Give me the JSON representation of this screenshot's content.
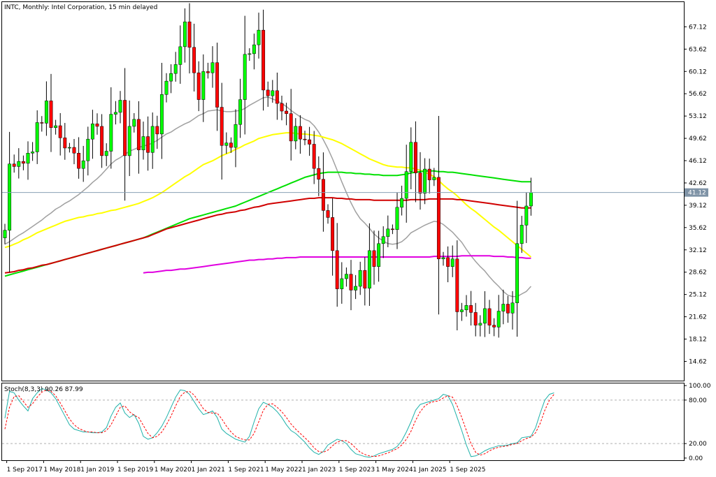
{
  "header": {
    "main_label": "INTC, Monthly:  Intel Corporation, 15 min delayed",
    "stoch_label": "Stoch(8,3,3) 90.26 87.99"
  },
  "colors": {
    "bull": "#00ff00",
    "bear": "#ff0000",
    "outline": "#000000",
    "sma_gray": "#a0a0a0",
    "sma_yellow": "#ffff00",
    "sma_green": "#00e000",
    "sma_red": "#d00000",
    "sma_magenta": "#e000e0",
    "stoch_main": "#20b2aa",
    "stoch_signal": "#ff0000",
    "current_line": "#8aa0b4",
    "price_box": "#7f93a6"
  },
  "chart_data": [
    {
      "type": "candlestick",
      "title": "INTC, Monthly:  Intel Corporation, 15 min delayed",
      "timeframe": "Monthly",
      "x_start": "2017-08",
      "x_end": "2025-10",
      "ylim": [
        11.6,
        71.0
      ],
      "y_ticks": [
        67.12,
        63.62,
        60.12,
        56.62,
        53.12,
        49.62,
        46.12,
        42.62,
        39.12,
        35.62,
        32.12,
        28.62,
        25.12,
        21.62,
        18.12,
        14.62
      ],
      "y_tick_labels": [
        "67.12",
        "63.62",
        "60.12",
        "56.62",
        "53.12",
        "49.62",
        "46.12",
        "42.62",
        "39.12",
        "35.62",
        "32.12",
        "28.62",
        "25.12",
        "21.62",
        "18.12",
        "14.62"
      ],
      "x_tick_labels": [
        "1 Sep 2017",
        "1 May 2018",
        "1 Jan 2019",
        "1 Sep 2019",
        "1 May 2020",
        "1 Jan 2021",
        "1 Sep 2021",
        "1 May 2022",
        "1 Jan 2023",
        "1 Sep 2023",
        "1 May 2024",
        "1 Jan 2025",
        "1 Sep 2025"
      ],
      "current_price": 41.12,
      "current_price_label": "41.12",
      "close_series": [
        35.2,
        45.6,
        45.2,
        46.0,
        45.7,
        47.3,
        47.5,
        52.1,
        52.0,
        55.5,
        51.3,
        51.6,
        49.7,
        48.1,
        48.2,
        47.3,
        44.9,
        46.1,
        49.5,
        51.9,
        51.5,
        46.9,
        47.6,
        53.4,
        53.7,
        55.6,
        46.9,
        51.5,
        52.6,
        47.8,
        49.9,
        47.4,
        51.5,
        50.3,
        56.5,
        58.6,
        59.8,
        61.2,
        64.0,
        67.9,
        63.9,
        59.9,
        55.7,
        60.1,
        59.9,
        61.5,
        54.5,
        48.5,
        48.9,
        48.2,
        51.8,
        55.7,
        62.8,
        62.9,
        64.3,
        66.6,
        57.2,
        56.3,
        57.1,
        55.1,
        53.9,
        53.5,
        49.2,
        51.5,
        49.5,
        49.4,
        48.7,
        44.9,
        43.2,
        38.3,
        37.2,
        32.0,
        26.0,
        27.6,
        28.3,
        25.8,
        26.4,
        28.9,
        26.1,
        32.0,
        29.5,
        33.1,
        34.2,
        35.4,
        35.3,
        38.8,
        40.2,
        44.4,
        49.0,
        44.2,
        41.0,
        44.8,
        43.1,
        43.5,
        30.7,
        30.9,
        29.5,
        30.7,
        22.4,
        22.7,
        23.4,
        22.3,
        20.3,
        20.6,
        22.9,
        20.3,
        20.0,
        22.5,
        23.6,
        22.2,
        23.8,
        33.1,
        36.0,
        39.0,
        41.1
      ],
      "series": [
        {
          "name": "SMA (gray)",
          "start_index": 0,
          "values": [
            33.0,
            33.4,
            33.9,
            34.4,
            34.8,
            35.3,
            35.8,
            36.3,
            36.8,
            37.4,
            37.9,
            38.5,
            38.9,
            39.4,
            39.8,
            40.3,
            40.8,
            41.4,
            42.0,
            42.7,
            43.3,
            44.0,
            44.8,
            45.6,
            46.2,
            46.6,
            47.1,
            47.6,
            47.9,
            48.2,
            48.4,
            48.6,
            48.9,
            49.3,
            49.8,
            50.3,
            50.6,
            51.1,
            51.5,
            51.9,
            52.2,
            52.7,
            53.2,
            53.5,
            53.9,
            54.0,
            54.1,
            53.9,
            53.8,
            53.8,
            53.9,
            54.0,
            54.3,
            54.8,
            55.2,
            55.6,
            56.0,
            56.1,
            55.8,
            55.5,
            55.1,
            54.6,
            54.0,
            53.5,
            53.0,
            52.6,
            52.3,
            51.6,
            50.6,
            49.4,
            48.0,
            46.4,
            44.6,
            42.8,
            41.1,
            39.5,
            38.1,
            37.0,
            36.3,
            35.5,
            34.6,
            34.0,
            33.5,
            33.1,
            33.0,
            33.1,
            33.4,
            34.0,
            34.8,
            35.2,
            35.6,
            36.0,
            36.3,
            36.6,
            36.5,
            36.1,
            35.5,
            34.9,
            34.1,
            33.3,
            32.2,
            31.2,
            30.3,
            29.5,
            28.8,
            27.9,
            27.1,
            26.4,
            25.6,
            25.0,
            24.8,
            24.8,
            25.2,
            25.6,
            26.4
          ]
        },
        {
          "name": "SMA (yellow)",
          "start_index": 0,
          "values": [
            32.5,
            32.7,
            33.0,
            33.3,
            33.7,
            34.0,
            34.4,
            34.8,
            35.1,
            35.4,
            35.7,
            36.0,
            36.3,
            36.6,
            36.8,
            37.0,
            37.2,
            37.3,
            37.5,
            37.6,
            37.8,
            37.9,
            38.1,
            38.3,
            38.4,
            38.6,
            38.8,
            39.0,
            39.2,
            39.4,
            39.7,
            40.0,
            40.3,
            40.7,
            41.1,
            41.6,
            42.1,
            42.6,
            43.1,
            43.6,
            44.0,
            44.5,
            45.0,
            45.5,
            45.8,
            46.1,
            46.5,
            46.9,
            47.2,
            47.5,
            47.9,
            48.2,
            48.6,
            48.9,
            49.2,
            49.6,
            49.8,
            50.0,
            50.2,
            50.3,
            50.4,
            50.5,
            50.5,
            50.4,
            50.3,
            50.3,
            50.2,
            50.1,
            50.0,
            49.8,
            49.6,
            49.4,
            49.1,
            48.8,
            48.4,
            48.0,
            47.6,
            47.2,
            46.8,
            46.4,
            46.1,
            45.8,
            45.5,
            45.3,
            45.2,
            45.1,
            45.1,
            45.0,
            45.0,
            44.8,
            44.6,
            44.3,
            44.0,
            43.6,
            43.0,
            42.3,
            41.7,
            41.2,
            40.6,
            39.9,
            39.2,
            38.6,
            38.1,
            37.5,
            36.9,
            36.3,
            35.7,
            35.2,
            34.6,
            34.0,
            33.4,
            32.8,
            32.2,
            31.6,
            31.0
          ]
        },
        {
          "name": "SMA (green)",
          "start_index": 0,
          "values": [
            28.0,
            28.2,
            28.4,
            28.6,
            28.8,
            29.0,
            29.2,
            29.4,
            29.6,
            29.8,
            30.0,
            30.2,
            30.4,
            30.6,
            30.8,
            31.0,
            31.2,
            31.4,
            31.6,
            31.8,
            32.0,
            32.2,
            32.4,
            32.6,
            32.8,
            33.0,
            33.2,
            33.4,
            33.6,
            33.8,
            34.0,
            34.3,
            34.6,
            34.9,
            35.2,
            35.5,
            35.8,
            36.1,
            36.4,
            36.7,
            37.0,
            37.2,
            37.4,
            37.6,
            37.8,
            38.0,
            38.2,
            38.4,
            38.6,
            38.8,
            39.0,
            39.3,
            39.6,
            39.9,
            40.2,
            40.5,
            40.8,
            41.1,
            41.4,
            41.7,
            42.0,
            42.3,
            42.6,
            42.9,
            43.2,
            43.5,
            43.7,
            43.9,
            44.1,
            44.2,
            44.3,
            44.3,
            44.3,
            44.3,
            44.2,
            44.2,
            44.1,
            44.1,
            44.0,
            44.0,
            43.9,
            43.9,
            43.8,
            43.8,
            43.8,
            43.8,
            43.9,
            44.0,
            44.2,
            44.3,
            44.4,
            44.5,
            44.5,
            44.5,
            44.4,
            44.4,
            44.3,
            44.3,
            44.2,
            44.1,
            44.0,
            43.9,
            43.8,
            43.7,
            43.6,
            43.5,
            43.4,
            43.3,
            43.2,
            43.1,
            43.0,
            42.9,
            42.8,
            42.8,
            42.8
          ]
        },
        {
          "name": "SMA (red)",
          "start_index": 0,
          "values": [
            28.5,
            28.6,
            28.7,
            28.9,
            29.0,
            29.2,
            29.3,
            29.5,
            29.7,
            29.8,
            30.0,
            30.2,
            30.4,
            30.6,
            30.8,
            31.0,
            31.2,
            31.4,
            31.6,
            31.8,
            32.0,
            32.2,
            32.4,
            32.6,
            32.8,
            33.0,
            33.2,
            33.4,
            33.6,
            33.8,
            34.0,
            34.2,
            34.5,
            34.8,
            35.1,
            35.4,
            35.6,
            35.8,
            36.0,
            36.2,
            36.4,
            36.6,
            36.8,
            37.0,
            37.2,
            37.4,
            37.6,
            37.7,
            37.9,
            38.0,
            38.1,
            38.3,
            38.4,
            38.6,
            38.8,
            38.9,
            39.1,
            39.3,
            39.4,
            39.5,
            39.6,
            39.7,
            39.8,
            39.9,
            40.0,
            40.1,
            40.2,
            40.2,
            40.3,
            40.3,
            40.3,
            40.3,
            40.2,
            40.2,
            40.1,
            40.1,
            40.0,
            40.0,
            40.0,
            40.0,
            39.9,
            39.9,
            39.9,
            39.9,
            39.9,
            39.9,
            39.9,
            39.9,
            40.0,
            40.0,
            40.0,
            40.0,
            40.1,
            40.1,
            40.1,
            40.1,
            40.1,
            40.1,
            40.0,
            40.0,
            39.9,
            39.8,
            39.7,
            39.6,
            39.5,
            39.4,
            39.3,
            39.2,
            39.1,
            39.0,
            38.9,
            38.8,
            38.7,
            38.7,
            38.7
          ]
        },
        {
          "name": "SMA (magenta)",
          "start_index": 30,
          "values": [
            28.5,
            28.6,
            28.6,
            28.7,
            28.8,
            28.9,
            28.9,
            29.0,
            29.1,
            29.1,
            29.2,
            29.3,
            29.4,
            29.5,
            29.6,
            29.7,
            29.8,
            29.9,
            30.0,
            30.1,
            30.2,
            30.3,
            30.4,
            30.5,
            30.5,
            30.6,
            30.6,
            30.7,
            30.7,
            30.8,
            30.8,
            30.9,
            30.9,
            30.9,
            31.0,
            31.0,
            31.0,
            31.0,
            31.0,
            31.0,
            31.0,
            31.0,
            31.0,
            31.0,
            31.0,
            31.0,
            31.0,
            31.0,
            31.0,
            31.0,
            31.0,
            31.0,
            31.0,
            31.0,
            31.0,
            31.0,
            31.0,
            31.0,
            31.0,
            31.0,
            31.0,
            31.0,
            31.0,
            31.1,
            31.1,
            31.1,
            31.1,
            31.1,
            31.1,
            31.2,
            31.2,
            31.2,
            31.2,
            31.2,
            31.2,
            31.2,
            31.1,
            31.1,
            31.1,
            31.0,
            31.0,
            30.9,
            30.9,
            30.8,
            30.8
          ]
        }
      ]
    },
    {
      "type": "line",
      "title": "Stoch(8,3,3) 90.26 87.99",
      "ylim": [
        -3,
        103
      ],
      "y_ticks": [
        100,
        80,
        20,
        0
      ],
      "y_tick_labels": [
        "100.00",
        "80.00",
        "20.00",
        "0.00"
      ],
      "levels": [
        80,
        20
      ],
      "series": [
        {
          "name": "Main",
          "values": [
            55,
            92,
            90,
            80,
            72,
            65,
            82,
            90,
            96,
            94,
            90,
            82,
            70,
            58,
            46,
            40,
            38,
            36,
            36,
            35,
            35,
            36,
            42,
            58,
            70,
            76,
            62,
            56,
            60,
            48,
            30,
            26,
            28,
            35,
            44,
            56,
            70,
            84,
            94,
            93,
            88,
            78,
            68,
            60,
            62,
            65,
            56,
            40,
            34,
            30,
            26,
            24,
            22,
            30,
            50,
            68,
            77,
            74,
            70,
            64,
            56,
            46,
            38,
            34,
            28,
            22,
            14,
            8,
            5,
            9,
            18,
            22,
            26,
            24,
            20,
            12,
            6,
            4,
            2,
            1,
            3,
            6,
            8,
            10,
            12,
            16,
            24,
            36,
            50,
            66,
            74,
            76,
            78,
            80,
            82,
            88,
            86,
            74,
            56,
            38,
            18,
            2,
            3,
            6,
            10,
            13,
            15,
            17,
            17,
            18,
            20,
            21,
            28,
            29,
            30,
            42,
            62,
            80,
            88,
            90
          ]
        },
        {
          "name": "Signal",
          "values": [
            40,
            70,
            85,
            86,
            78,
            70,
            75,
            84,
            91,
            94,
            92,
            86,
            76,
            65,
            54,
            46,
            41,
            38,
            36,
            36,
            35,
            35,
            38,
            46,
            58,
            70,
            72,
            64,
            59,
            56,
            45,
            34,
            28,
            30,
            36,
            46,
            58,
            72,
            85,
            91,
            92,
            87,
            78,
            68,
            63,
            62,
            62,
            54,
            44,
            36,
            30,
            27,
            25,
            25,
            34,
            50,
            66,
            74,
            75,
            70,
            64,
            56,
            47,
            40,
            34,
            28,
            22,
            14,
            9,
            8,
            11,
            17,
            22,
            24,
            24,
            20,
            14,
            8,
            5,
            3,
            2,
            3,
            5,
            7,
            10,
            13,
            18,
            26,
            37,
            52,
            64,
            72,
            76,
            78,
            79,
            83,
            86,
            84,
            72,
            56,
            38,
            20,
            8,
            4,
            6,
            10,
            13,
            15,
            16,
            17,
            19,
            20,
            24,
            27,
            29,
            35,
            48,
            66,
            80,
            88
          ]
        }
      ]
    }
  ]
}
